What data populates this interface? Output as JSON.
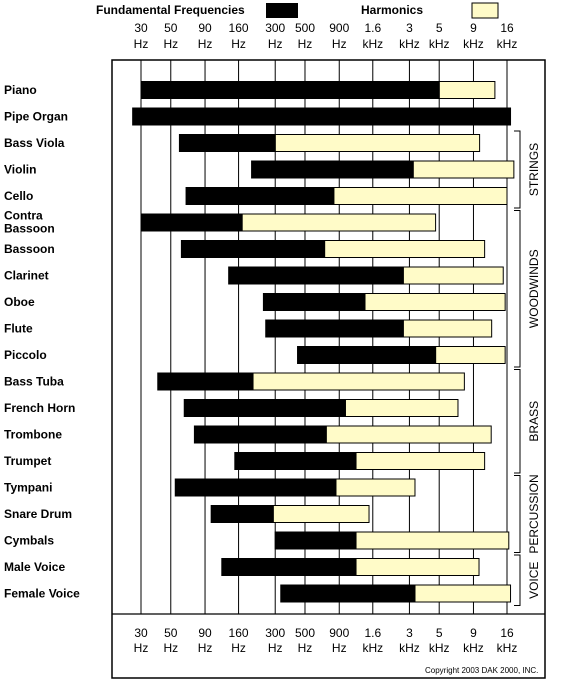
{
  "legend": {
    "fundamental_label": "Fundamental Frequencies",
    "harmonics_label": "Harmonics",
    "fundamental_color": "#000000",
    "harmonics_color": "#fffbc8"
  },
  "copyright": "Copyright 2003 DAK 2000, INC.",
  "chart_data": {
    "type": "bar",
    "orientation": "horizontal-range",
    "x_scale": "log",
    "x_unit": "Hz",
    "x_ticks": [
      {
        "value": 30,
        "line1": "30",
        "line2": "Hz"
      },
      {
        "value": 50,
        "line1": "50",
        "line2": "Hz"
      },
      {
        "value": 90,
        "line1": "90",
        "line2": "Hz"
      },
      {
        "value": 160,
        "line1": "160",
        "line2": "Hz"
      },
      {
        "value": 300,
        "line1": "300",
        "line2": "Hz"
      },
      {
        "value": 500,
        "line1": "500",
        "line2": "Hz"
      },
      {
        "value": 900,
        "line1": "900",
        "line2": "Hz"
      },
      {
        "value": 1600,
        "line1": "1.6",
        "line2": "kHz"
      },
      {
        "value": 3000,
        "line1": "3",
        "line2": "kHz"
      },
      {
        "value": 5000,
        "line1": "5",
        "line2": "kHz"
      },
      {
        "value": 9000,
        "line1": "9",
        "line2": "kHz"
      },
      {
        "value": 16000,
        "line1": "16",
        "line2": "kHz"
      }
    ],
    "grid": true,
    "legend_position": "top",
    "series": [
      {
        "name": "Fundamental Frequencies",
        "color": "#000000"
      },
      {
        "name": "Harmonics",
        "color": "#fffbc8"
      }
    ],
    "instruments": [
      {
        "name": "Piano",
        "fund": [
          30,
          5000
        ],
        "harm": [
          5000,
          13000
        ]
      },
      {
        "name": "Pipe Organ",
        "fund": [
          26,
          17000
        ],
        "harm": null
      },
      {
        "name": "Bass Viola",
        "fund": [
          58,
          300
        ],
        "harm": [
          300,
          10000
        ]
      },
      {
        "name": "Violin",
        "fund": [
          200,
          3200
        ],
        "harm": [
          3200,
          18000
        ]
      },
      {
        "name": "Cello",
        "fund": [
          65,
          820
        ],
        "harm": [
          820,
          16000
        ]
      },
      {
        "name": "Contra Bassoon",
        "fund": [
          30,
          170
        ],
        "harm": [
          170,
          4700
        ]
      },
      {
        "name": "Bassoon",
        "fund": [
          60,
          700
        ],
        "harm": [
          700,
          10900
        ]
      },
      {
        "name": "Clarinet",
        "fund": [
          135,
          2700
        ],
        "harm": [
          2700,
          15000
        ]
      },
      {
        "name": "Oboe",
        "fund": [
          245,
          1400
        ],
        "harm": [
          1400,
          15500
        ]
      },
      {
        "name": "Flute",
        "fund": [
          255,
          2700
        ],
        "harm": [
          2700,
          12300
        ]
      },
      {
        "name": "Piccolo",
        "fund": [
          440,
          4700
        ],
        "harm": [
          4700,
          15500
        ]
      },
      {
        "name": "Bass Tuba",
        "fund": [
          40,
          205
        ],
        "harm": [
          205,
          7700
        ]
      },
      {
        "name": "French Horn",
        "fund": [
          63,
          1000
        ],
        "harm": [
          1000,
          6900
        ]
      },
      {
        "name": "Trombone",
        "fund": [
          75,
          720
        ],
        "harm": [
          720,
          12200
        ]
      },
      {
        "name": "Trumpet",
        "fund": [
          150,
          1200
        ],
        "harm": [
          1200,
          10900
        ]
      },
      {
        "name": "Tympani",
        "fund": [
          54,
          850
        ],
        "harm": [
          850,
          3300
        ]
      },
      {
        "name": "Snare Drum",
        "fund": [
          100,
          290
        ],
        "harm": [
          290,
          1500
        ]
      },
      {
        "name": "Cymbals",
        "fund": [
          300,
          1200
        ],
        "harm": [
          1200,
          16500
        ]
      },
      {
        "name": "Male Voice",
        "fund": [
          120,
          1200
        ],
        "harm": [
          1200,
          9900
        ]
      },
      {
        "name": "Female Voice",
        "fund": [
          330,
          3300
        ],
        "harm": [
          3300,
          17000
        ]
      }
    ],
    "groups": [
      {
        "name": "STRINGS",
        "from": 2,
        "to": 4
      },
      {
        "name": "WOODWINDS",
        "from": 5,
        "to": 10
      },
      {
        "name": "BRASS",
        "from": 11,
        "to": 14
      },
      {
        "name": "PERCUSSION",
        "from": 15,
        "to": 17
      },
      {
        "name": "VOICE",
        "from": 18,
        "to": 19
      }
    ]
  }
}
